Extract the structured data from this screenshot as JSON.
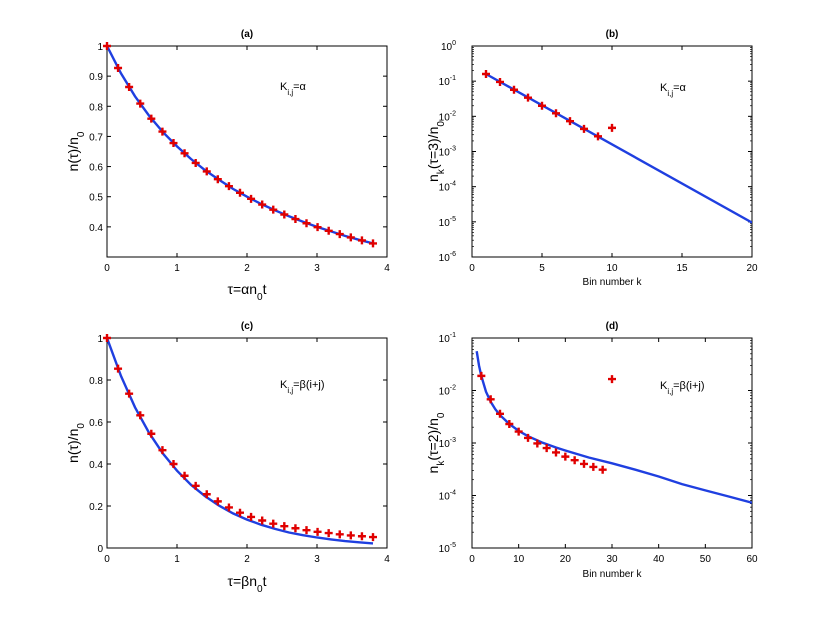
{
  "chart_data": [
    {
      "id": "a",
      "type": "line",
      "yscale": "linear",
      "title": "(a)",
      "xlabel": {
        "base": "τ=αn",
        "sub": "0",
        "tail": "t"
      },
      "ylabel": {
        "base": "n(τ)/n",
        "sub": "0",
        "tail": ""
      },
      "annotation": {
        "base": "K",
        "sub": "i,j",
        "tail": "=α"
      },
      "xlim": [
        0,
        4
      ],
      "ylim": [
        0.3,
        1.0
      ],
      "xticks": [
        0,
        1,
        2,
        3,
        4
      ],
      "yticks": [
        0.4,
        0.5,
        0.6,
        0.7,
        0.8,
        0.9,
        1
      ],
      "ytick_labels": [
        "0.4",
        "0.5",
        "0.6",
        "0.7",
        "0.8",
        "0.9",
        "1"
      ],
      "series": [
        {
          "name": "analytic",
          "kind": "line",
          "color": "#1f3fe0",
          "x": [
            0,
            0.2,
            0.4,
            0.6,
            0.8,
            1.0,
            1.2,
            1.4,
            1.6,
            1.8,
            2.0,
            2.2,
            2.4,
            2.6,
            2.8,
            3.0,
            3.2,
            3.4,
            3.6,
            3.8
          ],
          "y": [
            1.0,
            0.909,
            0.833,
            0.769,
            0.714,
            0.667,
            0.625,
            0.588,
            0.556,
            0.526,
            0.5,
            0.476,
            0.455,
            0.435,
            0.417,
            0.4,
            0.385,
            0.37,
            0.357,
            0.345
          ]
        },
        {
          "name": "simulation",
          "kind": "marker",
          "color": "#e00000",
          "x": [
            0,
            0.158,
            0.316,
            0.475,
            0.633,
            0.792,
            0.95,
            1.108,
            1.267,
            1.425,
            1.583,
            1.742,
            1.9,
            2.058,
            2.217,
            2.375,
            2.533,
            2.692,
            2.85,
            3.008,
            3.167,
            3.325,
            3.483,
            3.642,
            3.8
          ],
          "y": [
            1.0,
            0.927,
            0.864,
            0.809,
            0.759,
            0.716,
            0.678,
            0.644,
            0.612,
            0.584,
            0.558,
            0.535,
            0.513,
            0.493,
            0.474,
            0.457,
            0.441,
            0.426,
            0.412,
            0.399,
            0.387,
            0.376,
            0.365,
            0.355,
            0.345
          ]
        }
      ]
    },
    {
      "id": "b",
      "type": "line",
      "yscale": "log",
      "title": "(b)",
      "xlabel": {
        "base": "Bin number k",
        "sub": "",
        "tail": ""
      },
      "ylabel": {
        "base": "n",
        "sub": "k",
        "tail": "(τ=3)/n",
        "sub2": "0"
      },
      "annotation": {
        "base": "K",
        "sub": "i,j",
        "tail": "=α"
      },
      "xlim": [
        0,
        20
      ],
      "ylim_exp": [
        -6,
        0
      ],
      "xticks": [
        0,
        5,
        10,
        15,
        20
      ],
      "yticks_exp": [
        -6,
        -5,
        -4,
        -3,
        -2,
        -1,
        0
      ],
      "series": [
        {
          "name": "analytic",
          "kind": "line",
          "color": "#1f3fe0",
          "x": [
            1,
            20
          ],
          "y": [
            0.16,
            9.5e-06
          ]
        },
        {
          "name": "simulation",
          "kind": "marker",
          "color": "#e00000",
          "x": [
            1,
            2,
            3,
            4,
            5,
            6,
            7,
            8,
            9,
            10
          ],
          "y": [
            0.16,
            0.095,
            0.057,
            0.034,
            0.02,
            0.0122,
            0.0073,
            0.0044,
            0.0027,
            0.0047
          ]
        }
      ]
    },
    {
      "id": "c",
      "type": "line",
      "yscale": "linear",
      "title": "(c)",
      "xlabel": {
        "base": "τ=βn",
        "sub": "0",
        "tail": "t"
      },
      "ylabel": {
        "base": "n(τ)/n",
        "sub": "0",
        "tail": ""
      },
      "annotation": {
        "base": "K",
        "sub": "i,j",
        "tail": "=β(i+j)"
      },
      "xlim": [
        0,
        4
      ],
      "ylim": [
        0,
        1.0
      ],
      "xticks": [
        0,
        1,
        2,
        3,
        4
      ],
      "yticks": [
        0,
        0.2,
        0.4,
        0.6,
        0.8,
        1
      ],
      "ytick_labels": [
        "0",
        "0.2",
        "0.4",
        "0.6",
        "0.8",
        "1"
      ],
      "series": [
        {
          "name": "analytic",
          "kind": "line",
          "color": "#1f3fe0",
          "x": [
            0,
            0.2,
            0.4,
            0.6,
            0.8,
            1.0,
            1.2,
            1.4,
            1.6,
            1.8,
            2.0,
            2.2,
            2.4,
            2.6,
            2.8,
            3.0,
            3.2,
            3.4,
            3.6,
            3.8
          ],
          "y": [
            1.0,
            0.819,
            0.67,
            0.549,
            0.449,
            0.368,
            0.301,
            0.247,
            0.202,
            0.165,
            0.135,
            0.111,
            0.091,
            0.074,
            0.061,
            0.05,
            0.041,
            0.033,
            0.027,
            0.022
          ]
        },
        {
          "name": "simulation",
          "kind": "marker",
          "color": "#e00000",
          "x": [
            0,
            0.158,
            0.316,
            0.475,
            0.633,
            0.792,
            0.95,
            1.108,
            1.267,
            1.425,
            1.583,
            1.742,
            1.9,
            2.058,
            2.217,
            2.375,
            2.533,
            2.692,
            2.85,
            3.008,
            3.167,
            3.325,
            3.483,
            3.642,
            3.8
          ],
          "y": [
            1.0,
            0.854,
            0.735,
            0.632,
            0.544,
            0.466,
            0.4,
            0.344,
            0.296,
            0.256,
            0.222,
            0.193,
            0.168,
            0.148,
            0.131,
            0.116,
            0.104,
            0.094,
            0.085,
            0.077,
            0.071,
            0.065,
            0.06,
            0.056,
            0.052
          ]
        }
      ]
    },
    {
      "id": "d",
      "type": "line",
      "yscale": "log",
      "title": "(d)",
      "xlabel": {
        "base": "Bin number k",
        "sub": "",
        "tail": ""
      },
      "ylabel": {
        "base": "n",
        "sub": "k",
        "tail": "(τ=2)/n",
        "sub2": "0"
      },
      "annotation": {
        "base": "K",
        "sub": "i,j",
        "tail": "=β(i+j)"
      },
      "xlim": [
        0,
        60
      ],
      "ylim_exp": [
        -5,
        -1
      ],
      "xticks": [
        0,
        10,
        20,
        30,
        40,
        50,
        60
      ],
      "yticks_exp": [
        -5,
        -4,
        -3,
        -2,
        -1
      ],
      "series": [
        {
          "name": "analytic",
          "kind": "line",
          "color": "#1f3fe0",
          "x": [
            1,
            1.5,
            2,
            3,
            4,
            5,
            6,
            8,
            10,
            12,
            15,
            18,
            20,
            25,
            30,
            35,
            40,
            45,
            50,
            55,
            60
          ],
          "y": [
            0.056,
            0.03,
            0.019,
            0.0095,
            0.0061,
            0.0044,
            0.0034,
            0.0023,
            0.0017,
            0.00135,
            0.00102,
            0.00082,
            0.00072,
            0.00053,
            0.00041,
            0.00031,
            0.00023,
            0.000165,
            0.000125,
            9.55e-05,
            7.3e-05
          ]
        },
        {
          "name": "simulation",
          "kind": "marker",
          "color": "#e00000",
          "x": [
            2,
            4,
            6,
            8,
            10,
            12,
            14,
            16,
            18,
            20,
            22,
            24,
            26,
            28,
            30
          ],
          "y": [
            0.019,
            0.0068,
            0.0036,
            0.0023,
            0.00165,
            0.00125,
            0.00098,
            0.0008,
            0.00066,
            0.00055,
            0.00047,
            0.0004,
            0.00035,
            0.00031,
            0.0165
          ]
        }
      ]
    }
  ]
}
